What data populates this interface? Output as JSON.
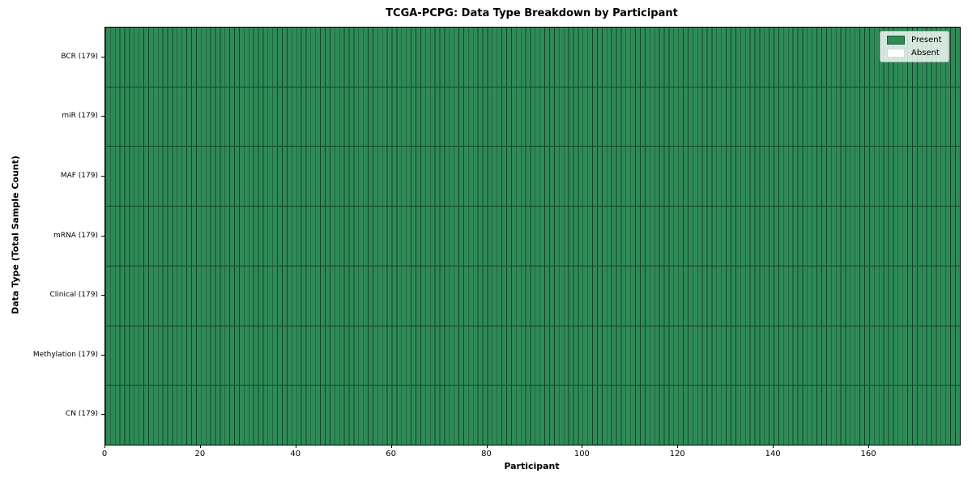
{
  "chart_data": {
    "type": "heatmap",
    "title": "TCGA-PCPG: Data Type Breakdown by Participant",
    "xlabel": "Participant",
    "ylabel": "Data Type (Total Sample Count)",
    "xlim": [
      0,
      179
    ],
    "n_participants": 179,
    "x_ticks": [
      0,
      20,
      40,
      60,
      80,
      100,
      120,
      140,
      160
    ],
    "rows": [
      {
        "label": "BCR (179)",
        "data_type": "BCR",
        "total_samples": 179,
        "present_count": 179,
        "absent_count": 0
      },
      {
        "label": "miR (179)",
        "data_type": "miR",
        "total_samples": 179,
        "present_count": 179,
        "absent_count": 0
      },
      {
        "label": "MAF (179)",
        "data_type": "MAF",
        "total_samples": 179,
        "present_count": 179,
        "absent_count": 0
      },
      {
        "label": "mRNA (179)",
        "data_type": "mRNA",
        "total_samples": 179,
        "present_count": 179,
        "absent_count": 0
      },
      {
        "label": "Clinical (179)",
        "data_type": "Clinical",
        "total_samples": 179,
        "present_count": 179,
        "absent_count": 0
      },
      {
        "label": "Methylation (179)",
        "data_type": "Methylation",
        "total_samples": 179,
        "present_count": 179,
        "absent_count": 0
      },
      {
        "label": "CN (179)",
        "data_type": "CN",
        "total_samples": 179,
        "present_count": 179,
        "absent_count": 0
      }
    ],
    "legend": [
      {
        "label": "Present",
        "color": "#2E8B57"
      },
      {
        "label": "Absent",
        "color": "#FFFFFF"
      }
    ],
    "colors": {
      "present": "#2E8B57",
      "absent": "#FFFFFF",
      "cell_edge": "#17402B",
      "row_separator": "#17402B",
      "plot_border": "#000000"
    },
    "layout": {
      "grid": "cell-edges",
      "legend_position": "upper right"
    }
  }
}
